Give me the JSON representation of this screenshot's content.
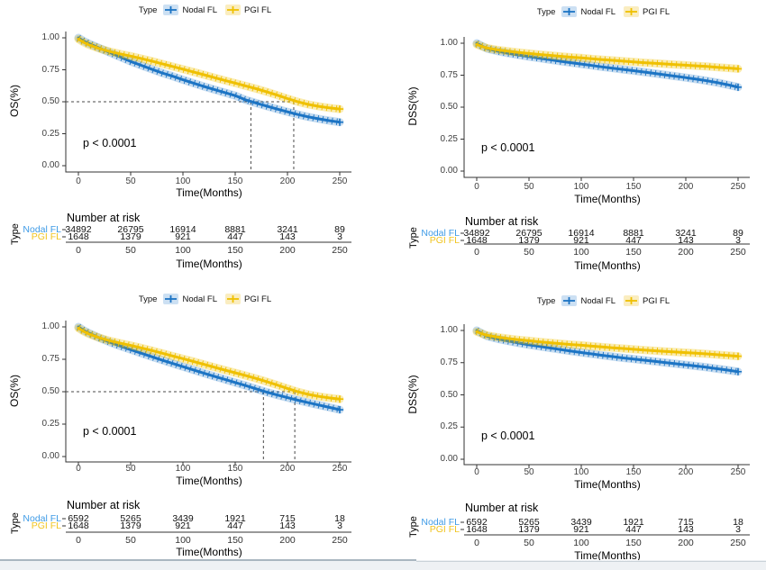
{
  "chart_data": [
    {
      "id": "os-overall-cohort",
      "type": "line",
      "subtype": "kaplan-meier",
      "ylabel": "OS(%)",
      "xlabel": "Time(Months)",
      "p_annotation": "p < 0.0001",
      "legend": {
        "title": "Type",
        "entries": [
          "Nodal FL",
          "PGI FL"
        ]
      },
      "x_ticks": [
        "0",
        "50",
        "100",
        "150",
        "200",
        "250"
      ],
      "y_ticks": [
        "1.00",
        "0.75",
        "0.50",
        "0.25",
        "0.00"
      ],
      "xlim": [
        0,
        250
      ],
      "ylim": [
        0,
        1
      ],
      "median_lines": {
        "y": 0.5,
        "x_values": [
          165,
          206
        ]
      },
      "x": [
        0,
        5,
        10,
        20,
        30,
        40,
        50,
        60,
        70,
        80,
        90,
        100,
        110,
        120,
        130,
        140,
        150,
        160,
        170,
        180,
        190,
        200,
        210,
        220,
        230,
        240,
        250
      ],
      "series": [
        {
          "name": "Nodal FL",
          "color": "#1C74C4",
          "band_color": "rgba(28,116,196,0.25)",
          "key_bg": "#CCE0F3",
          "y": [
            1.0,
            0.975,
            0.955,
            0.92,
            0.885,
            0.85,
            0.815,
            0.785,
            0.755,
            0.725,
            0.7,
            0.672,
            0.646,
            0.62,
            0.596,
            0.572,
            0.548,
            0.515,
            0.49,
            0.466,
            0.443,
            0.421,
            0.4,
            0.382,
            0.366,
            0.352,
            0.34
          ]
        },
        {
          "name": "PGI FL",
          "color": "#EFC000",
          "band_color": "rgba(239,192,0,0.30)",
          "key_bg": "#FAEDC0",
          "y": [
            0.99,
            0.965,
            0.945,
            0.916,
            0.893,
            0.874,
            0.857,
            0.838,
            0.818,
            0.797,
            0.776,
            0.755,
            0.733,
            0.711,
            0.689,
            0.667,
            0.646,
            0.624,
            0.602,
            0.578,
            0.552,
            0.525,
            0.499,
            0.479,
            0.464,
            0.452,
            0.443
          ]
        }
      ],
      "risk_table": {
        "title": "Number at risk",
        "ylabel": "Type",
        "xlabel": "Time(Months)",
        "x_ticks": [
          "0",
          "50",
          "100",
          "150",
          "200",
          "250"
        ],
        "rows": [
          {
            "name": "Nodal FL",
            "label_color": "#3F9BE6",
            "values": [
              "34892",
              "26795",
              "16914",
              "8881",
              "3241",
              "89"
            ]
          },
          {
            "name": "PGI FL",
            "label_color": "#F0C420",
            "values": [
              "1648",
              "1379",
              "921",
              "447",
              "143",
              "3"
            ]
          }
        ]
      }
    },
    {
      "id": "dss-overall-cohort",
      "type": "line",
      "subtype": "kaplan-meier",
      "ylabel": "DSS(%)",
      "xlabel": "Time(Months)",
      "p_annotation": "p < 0.0001",
      "legend": {
        "title": "Type",
        "entries": [
          "Nodal FL",
          "PGI FL"
        ]
      },
      "x_ticks": [
        "0",
        "50",
        "100",
        "150",
        "200",
        "250"
      ],
      "y_ticks": [
        "1.00",
        "0.75",
        "0.50",
        "0.25",
        "0.00"
      ],
      "xlim": [
        0,
        250
      ],
      "ylim": [
        0,
        1
      ],
      "median_lines": null,
      "x": [
        0,
        5,
        10,
        20,
        30,
        40,
        50,
        60,
        70,
        80,
        90,
        100,
        110,
        120,
        130,
        140,
        150,
        160,
        170,
        180,
        190,
        200,
        210,
        220,
        230,
        240,
        250
      ],
      "series": [
        {
          "name": "Nodal FL",
          "color": "#1C74C4",
          "band_color": "rgba(28,116,196,0.25)",
          "key_bg": "#CCE0F3",
          "y": [
            1.0,
            0.978,
            0.958,
            0.938,
            0.922,
            0.908,
            0.895,
            0.883,
            0.871,
            0.859,
            0.848,
            0.837,
            0.826,
            0.815,
            0.805,
            0.795,
            0.785,
            0.775,
            0.764,
            0.753,
            0.742,
            0.731,
            0.719,
            0.706,
            0.692,
            0.675,
            0.656
          ]
        },
        {
          "name": "PGI FL",
          "color": "#EFC000",
          "band_color": "rgba(239,192,0,0.30)",
          "key_bg": "#FAEDC0",
          "y": [
            0.99,
            0.975,
            0.962,
            0.948,
            0.937,
            0.928,
            0.92,
            0.912,
            0.905,
            0.898,
            0.891,
            0.885,
            0.878,
            0.872,
            0.866,
            0.86,
            0.854,
            0.848,
            0.843,
            0.838,
            0.833,
            0.828,
            0.823,
            0.818,
            0.812,
            0.806,
            0.8
          ]
        }
      ],
      "risk_table": {
        "title": "Number at risk",
        "ylabel": "Type",
        "xlabel": "Time(Months)",
        "x_ticks": [
          "0",
          "50",
          "100",
          "150",
          "200",
          "250"
        ],
        "rows": [
          {
            "name": "Nodal FL",
            "label_color": "#3F9BE6",
            "values": [
              "34892",
              "26795",
              "16914",
              "8881",
              "3241",
              "89"
            ]
          },
          {
            "name": "PGI FL",
            "label_color": "#F0C420",
            "values": [
              "1648",
              "1379",
              "921",
              "447",
              "143",
              "3"
            ]
          }
        ]
      }
    },
    {
      "id": "os-matched-cohort",
      "type": "line",
      "subtype": "kaplan-meier",
      "ylabel": "OS(%)",
      "xlabel": "Time(Months)",
      "p_annotation": "p < 0.0001",
      "legend": {
        "title": "Type",
        "entries": [
          "Nodal FL",
          "PGI FL"
        ]
      },
      "x_ticks": [
        "0",
        "50",
        "100",
        "150",
        "200",
        "250"
      ],
      "y_ticks": [
        "1.00",
        "0.75",
        "0.50",
        "0.25",
        "0.00"
      ],
      "xlim": [
        0,
        250
      ],
      "ylim": [
        0,
        1
      ],
      "median_lines": {
        "y": 0.5,
        "x_values": [
          177,
          207
        ]
      },
      "x": [
        0,
        5,
        10,
        20,
        30,
        40,
        50,
        60,
        70,
        80,
        90,
        100,
        110,
        120,
        130,
        140,
        150,
        160,
        170,
        180,
        190,
        200,
        210,
        220,
        230,
        240,
        250
      ],
      "series": [
        {
          "name": "Nodal FL",
          "color": "#1C74C4",
          "band_color": "rgba(28,116,196,0.25)",
          "key_bg": "#CCE0F3",
          "y": [
            1.0,
            0.973,
            0.952,
            0.915,
            0.882,
            0.852,
            0.824,
            0.797,
            0.77,
            0.744,
            0.718,
            0.693,
            0.668,
            0.643,
            0.619,
            0.595,
            0.571,
            0.547,
            0.522,
            0.497,
            0.475,
            0.454,
            0.434,
            0.415,
            0.397,
            0.379,
            0.361
          ]
        },
        {
          "name": "PGI FL",
          "color": "#EFC000",
          "band_color": "rgba(239,192,0,0.30)",
          "key_bg": "#FAEDC0",
          "y": [
            0.99,
            0.965,
            0.945,
            0.916,
            0.893,
            0.874,
            0.857,
            0.838,
            0.818,
            0.797,
            0.776,
            0.755,
            0.733,
            0.711,
            0.689,
            0.667,
            0.646,
            0.624,
            0.602,
            0.578,
            0.552,
            0.525,
            0.499,
            0.479,
            0.464,
            0.452,
            0.443
          ]
        }
      ],
      "risk_table": {
        "title": "Number at risk",
        "ylabel": "Type",
        "xlabel": "Time(Months)",
        "x_ticks": [
          "0",
          "50",
          "100",
          "150",
          "200",
          "250"
        ],
        "rows": [
          {
            "name": "Nodal FL",
            "label_color": "#3F9BE6",
            "values": [
              "6592",
              "5265",
              "3439",
              "1921",
              "715",
              "18"
            ]
          },
          {
            "name": "PGI FL",
            "label_color": "#F0C420",
            "values": [
              "1648",
              "1379",
              "921",
              "447",
              "143",
              "3"
            ]
          }
        ]
      }
    },
    {
      "id": "dss-matched-cohort",
      "type": "line",
      "subtype": "kaplan-meier",
      "ylabel": "DSS(%)",
      "xlabel": "Time(Months)",
      "p_annotation": "p < 0.0001",
      "legend": {
        "title": "Type",
        "entries": [
          "Nodal FL",
          "PGI FL"
        ]
      },
      "x_ticks": [
        "0",
        "50",
        "100",
        "150",
        "200",
        "250"
      ],
      "y_ticks": [
        "1.00",
        "0.75",
        "0.50",
        "0.25",
        "0.00"
      ],
      "xlim": [
        0,
        250
      ],
      "ylim": [
        0,
        1
      ],
      "median_lines": null,
      "x": [
        0,
        5,
        10,
        20,
        30,
        40,
        50,
        60,
        70,
        80,
        90,
        100,
        110,
        120,
        130,
        140,
        150,
        160,
        170,
        180,
        190,
        200,
        210,
        220,
        230,
        240,
        250
      ],
      "series": [
        {
          "name": "Nodal FL",
          "color": "#1C74C4",
          "band_color": "rgba(28,116,196,0.25)",
          "key_bg": "#CCE0F3",
          "y": [
            1.0,
            0.977,
            0.955,
            0.935,
            0.918,
            0.903,
            0.889,
            0.876,
            0.864,
            0.852,
            0.84,
            0.829,
            0.818,
            0.807,
            0.797,
            0.787,
            0.778,
            0.769,
            0.76,
            0.751,
            0.742,
            0.733,
            0.724,
            0.714,
            0.703,
            0.692,
            0.68
          ]
        },
        {
          "name": "PGI FL",
          "color": "#EFC000",
          "band_color": "rgba(239,192,0,0.30)",
          "key_bg": "#FAEDC0",
          "y": [
            0.99,
            0.975,
            0.962,
            0.948,
            0.937,
            0.928,
            0.92,
            0.912,
            0.905,
            0.898,
            0.891,
            0.885,
            0.878,
            0.872,
            0.866,
            0.86,
            0.854,
            0.848,
            0.843,
            0.838,
            0.833,
            0.828,
            0.823,
            0.818,
            0.812,
            0.806,
            0.8
          ]
        }
      ],
      "risk_table": {
        "title": "Number at risk",
        "ylabel": "Type",
        "xlabel": "Time(Months)",
        "x_ticks": [
          "0",
          "50",
          "100",
          "150",
          "200",
          "250"
        ],
        "rows": [
          {
            "name": "Nodal FL",
            "label_color": "#3F9BE6",
            "values": [
              "6592",
              "5265",
              "3439",
              "1921",
              "715",
              "18"
            ]
          },
          {
            "name": "PGI FL",
            "label_color": "#F0C420",
            "values": [
              "1648",
              "1379",
              "921",
              "447",
              "143",
              "3"
            ]
          }
        ]
      }
    }
  ]
}
